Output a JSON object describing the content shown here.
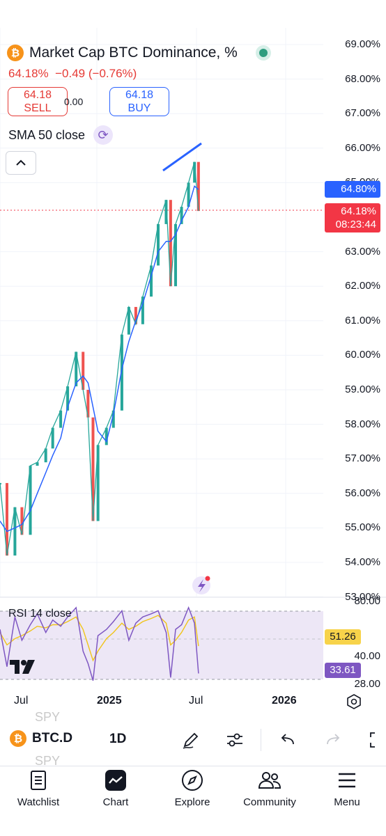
{
  "header": {
    "coin_icon": "₿",
    "title": "Market Cap BTC Dominance, %",
    "last": "64.18%",
    "change": "−0.49",
    "change_pct": "(−0.76%)",
    "sell_price": "64.18",
    "sell_label": "SELL",
    "spread": "0.00",
    "buy_price": "64.18",
    "buy_label": "BUY",
    "indicator": "SMA 50 close",
    "colors": {
      "down": "#e53935",
      "up_blue": "#2962ff",
      "status": "#2e9d7f"
    }
  },
  "price_axis": {
    "ticks": [
      "69.00%",
      "68.00%",
      "67.00%",
      "66.00%",
      "65.00%",
      "63.00%",
      "62.00%",
      "61.00%",
      "60.00%",
      "59.00%",
      "58.00%",
      "57.00%",
      "56.00%",
      "55.00%",
      "54.00%",
      "53.00%"
    ],
    "sma_tag": "64.80%",
    "price_tag": "64.18%",
    "countdown": "08:23:44"
  },
  "rsi": {
    "label": "RSI 14 close",
    "ticks": [
      "80.00",
      "40.00",
      "28.00"
    ],
    "ma_tag": "51.26",
    "rsi_tag": "33.61",
    "colors": {
      "rsi": "#7e57c2",
      "ma": "#f0c419",
      "band": "#ede7f6"
    }
  },
  "time_axis": {
    "labels": [
      "Jul",
      "2025",
      "Jul",
      "2026"
    ]
  },
  "chart_data": {
    "type": "line",
    "title": "Market Cap BTC Dominance, %",
    "ylabel": "",
    "ylim": [
      53.0,
      69.0
    ],
    "x": [
      "2024-06-01",
      "2024-06-15",
      "2024-07-01",
      "2024-07-15",
      "2024-08-01",
      "2024-08-15",
      "2024-09-01",
      "2024-09-15",
      "2024-10-01",
      "2024-10-15",
      "2024-11-01",
      "2024-11-15",
      "2024-11-25",
      "2024-12-05",
      "2024-12-15",
      "2025-01-01",
      "2025-01-15",
      "2025-02-01",
      "2025-02-15",
      "2025-03-01",
      "2025-03-15",
      "2025-04-01",
      "2025-04-15",
      "2025-05-01",
      "2025-05-10",
      "2025-05-20",
      "2025-06-01",
      "2025-06-15",
      "2025-06-27",
      "2025-07-05"
    ],
    "series": [
      {
        "name": "BTC.D",
        "values": [
          56.3,
          54.2,
          55.6,
          54.8,
          56.8,
          56.9,
          57.3,
          57.9,
          58.4,
          59.1,
          60.1,
          59.0,
          58.2,
          55.2,
          57.4,
          57.9,
          58.4,
          60.6,
          61.4,
          60.9,
          61.7,
          62.6,
          63.8,
          64.5,
          62.0,
          63.8,
          64.3,
          65.0,
          65.6,
          64.18
        ]
      },
      {
        "name": "SMA 50 close",
        "values": [
          55.2,
          54.9,
          55.0,
          55.1,
          55.5,
          56.0,
          56.6,
          57.1,
          57.6,
          58.5,
          59.2,
          59.4,
          59.2,
          58.5,
          57.8,
          57.5,
          58.3,
          59.6,
          60.4,
          61.0,
          61.5,
          62.3,
          63.0,
          63.3,
          63.3,
          63.5,
          63.9,
          64.3,
          64.9,
          64.8
        ]
      }
    ],
    "rsi": {
      "ylim": [
        28,
        80
      ],
      "levels": [
        70,
        30
      ],
      "values": [
        62,
        38,
        70,
        55,
        65,
        72,
        60,
        68,
        64,
        70,
        76,
        48,
        40,
        29,
        58,
        62,
        67,
        74,
        55,
        66,
        70,
        72,
        74,
        60,
        31,
        62,
        65,
        76,
        66,
        33.61
      ],
      "ma_values": [
        60,
        52,
        56,
        58,
        61,
        64,
        63,
        65,
        65,
        67,
        70,
        62,
        52,
        42,
        48,
        56,
        60,
        66,
        62,
        64,
        67,
        69,
        71,
        66,
        52,
        55,
        60,
        68,
        70,
        51.26
      ]
    },
    "grid": true,
    "legend": "none"
  },
  "toolbar": {
    "symbol": "BTC.D",
    "interval": "1D",
    "ghost_top": "SPY",
    "ghost_bottom": "SPY"
  },
  "nav": {
    "watchlist": "Watchlist",
    "chart": "Chart",
    "explore": "Explore",
    "community": "Community",
    "menu": "Menu"
  }
}
